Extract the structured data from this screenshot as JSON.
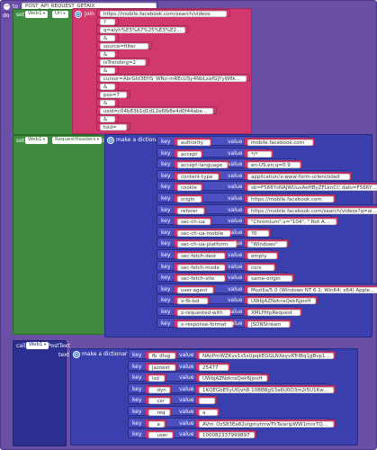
{
  "procedure": {
    "to_label": "to",
    "name": "POST_API_REQUEST_GETAIX",
    "do_label": "do"
  },
  "labels": {
    "set": "set",
    "to": "to",
    "join": "join",
    "make_dictionary": "make a dictionary",
    "key": "key",
    "value": "value",
    "call": "call",
    "text": "text"
  },
  "set_url": {
    "component": "Web1",
    "property": "Url",
    "join_parts": [
      "https://mobile.facebook.com/search/videos",
      "?",
      "q=aiyh%E5%A7%25%E3%E20ukeu",
      "&",
      "source=filter",
      "&",
      "isTrending=2",
      "&",
      "cursor=AbrGId3EHS_WNo-mREcUSy4NbLxafGjYyW8koyIC…",
      "&",
      "pos=7",
      "&",
      "usid=c04b83b1d1d12e6fb8e4d0f44abe233",
      "&",
      "tsid="
    ]
  },
  "set_headers": {
    "component": "Web1",
    "property": "RequestHeaders",
    "pairs": [
      {
        "key": "authority",
        "value": "mobile.facebook.com"
      },
      {
        "key": "accept",
        "value": "*/*"
      },
      {
        "key": "accept-language",
        "value": "en-US,en;q=0.9"
      },
      {
        "key": "content-type",
        "value": "application/x-www-form-urlencoded"
      },
      {
        "key": "cookie",
        "value": "sb=F566YsNAJWUuxAeHByZFLknCt; dats=F566YsxN7MzsKO…"
      },
      {
        "key": "origin",
        "value": "https://mobile.facebook.com"
      },
      {
        "key": "referer",
        "value": "https://mobile.facebook.com/search/videos?q=aiyh…"
      },
      {
        "key": "sec-ch-ua",
        "value": "\"Chromium\";v=\"104\", \" Not A…"
      },
      {
        "key": "sec-ch-ua-mobile",
        "value": "?0"
      },
      {
        "key": "sec-ch-ua-platform",
        "value": "\"Windows\""
      },
      {
        "key": "sec-fetch-dest",
        "value": "empty"
      },
      {
        "key": "sec-fetch-mode",
        "value": "cors"
      },
      {
        "key": "sec-fetch-site",
        "value": "same-origin"
      },
      {
        "key": "user-agent",
        "value": "Mozilla/5.0 (Windows NT 6.1; Win64; x64) AppleWe…"
      },
      {
        "key": "x-fb-lsd",
        "value": "UWbjAZNzknsQek6jjosH"
      },
      {
        "key": "x-requested-with",
        "value": "XMLHttpRequest"
      },
      {
        "key": "x-response-format",
        "value": "JSONStream"
      }
    ]
  },
  "call_post": {
    "component": "Web1",
    "method": "PostText",
    "pairs": [
      {
        "key": "fb_dtsg",
        "value": "NAcPmWZKvv1s5sUpqkEGGLNXeyvRTrIBq1gBvp1wR81LF…"
      },
      {
        "key": "jazoest",
        "value": "25477"
      },
      {
        "key": "lsd",
        "value": "UWbjAZNzknsQek6jjosH"
      },
      {
        "key": "__dyn",
        "value": "1KQEGbE5yU0jvh8-10BBBgS3a6U0O3m2i5U1Kw9y3q327E2Jn…"
      },
      {
        "key": "__csr",
        "value": ""
      },
      {
        "key": "__req",
        "value": "a"
      },
      {
        "key": "__a",
        "value": "AVm_OzS83Ee62vlgmytmwThTaiaripWW1mnrTQe0tBAhoAe…"
      },
      {
        "key": "__user",
        "value": "100082337999897"
      }
    ]
  }
}
